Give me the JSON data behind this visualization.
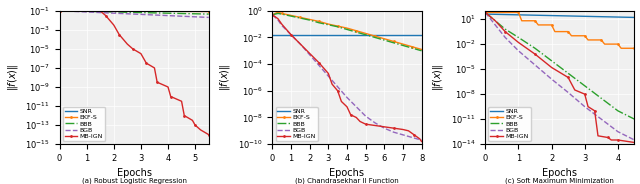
{
  "panels": [
    {
      "xlabel": "Epochs",
      "xlim": [
        0,
        5.5
      ],
      "xticks": [
        0,
        1,
        2,
        3,
        4,
        5
      ],
      "ylim_log": [
        -15,
        -1
      ],
      "caption": "(a) Robust Logistic Regression"
    },
    {
      "xlabel": "Epochs",
      "xlim": [
        0,
        8
      ],
      "xticks": [
        0,
        1,
        2,
        3,
        4,
        5,
        6,
        7,
        8
      ],
      "ylim_log": [
        -10,
        0
      ],
      "caption": "(b) Chandrasekhar II Function"
    },
    {
      "xlabel": "Epochs",
      "xlim": [
        0,
        4.5
      ],
      "xticks": [
        0,
        1,
        2,
        3,
        4
      ],
      "ylim_log": [
        -14,
        2
      ],
      "caption": "(c) Soft Maximum Minimization"
    }
  ],
  "line_styles": {
    "SNR": {
      "color": "#1f77b4",
      "ls": "-",
      "lw": 1.0,
      "marker": null,
      "ms": 2
    },
    "EKF-S": {
      "color": "#ff7f0e",
      "ls": "-",
      "lw": 1.0,
      "marker": ".",
      "ms": 2
    },
    "BBB": {
      "color": "#2ca02c",
      "ls": "-.",
      "lw": 1.0,
      "marker": null,
      "ms": 2
    },
    "BGB": {
      "color": "#9467bd",
      "ls": "--",
      "lw": 1.0,
      "marker": null,
      "ms": 2
    },
    "MB-IGN": {
      "color": "#d62728",
      "ls": "-",
      "lw": 1.0,
      "marker": ".",
      "ms": 2
    }
  },
  "p1": {
    "SNR": {
      "x": [
        0,
        5.5
      ],
      "y": [
        -1.0,
        -1.05
      ]
    },
    "EKF-S": {
      "x": [
        0,
        5.5
      ],
      "y": [
        -1.0,
        -1.08
      ]
    },
    "BBB": {
      "x": [
        0,
        5.5
      ],
      "y": [
        -1.0,
        -1.35
      ]
    },
    "BGB": {
      "x": [
        0,
        5.5
      ],
      "y": [
        -1.0,
        -1.7
      ]
    },
    "MB-IGN": {
      "x": [
        0,
        1.5,
        1.7,
        2.0,
        2.2,
        2.5,
        2.7,
        3.0,
        3.2,
        3.5,
        3.6,
        4.0,
        4.1,
        4.5,
        4.6,
        4.9,
        5.0,
        5.2,
        5.5
      ],
      "y": [
        -1.0,
        -1.02,
        -1.5,
        -2.5,
        -3.5,
        -4.5,
        -5.0,
        -5.5,
        -6.5,
        -7.0,
        -8.5,
        -9.0,
        -10.0,
        -10.5,
        -12.0,
        -12.5,
        -13.0,
        -13.5,
        -14.0
      ]
    }
  },
  "p2": {
    "SNR": {
      "x": [
        0,
        8
      ],
      "y": [
        -1.8,
        -1.8
      ]
    },
    "EKF-S": {
      "x": [
        0,
        0.3,
        0.5,
        1,
        1.5,
        2,
        2.5,
        3,
        3.5,
        4,
        4.5,
        5,
        5.5,
        6,
        6.5,
        7,
        7.5,
        8
      ],
      "y": [
        -0.3,
        -0.1,
        -0.2,
        -0.35,
        -0.5,
        -0.65,
        -0.8,
        -1.0,
        -1.15,
        -1.3,
        -1.5,
        -1.7,
        -1.9,
        -2.1,
        -2.3,
        -2.5,
        -2.7,
        -2.9
      ]
    },
    "BBB": {
      "x": [
        0,
        0.3,
        0.5,
        1,
        1.5,
        2,
        2.5,
        3,
        3.5,
        4,
        4.5,
        5,
        5.5,
        6,
        6.5,
        7,
        7.5,
        8
      ],
      "y": [
        -0.3,
        -0.2,
        -0.25,
        -0.4,
        -0.55,
        -0.7,
        -0.9,
        -1.05,
        -1.2,
        -1.4,
        -1.6,
        -1.8,
        -2.0,
        -2.2,
        -2.4,
        -2.6,
        -2.8,
        -3.0
      ]
    },
    "BGB": {
      "x": [
        0,
        0.3,
        0.5,
        1,
        1.5,
        2,
        2.5,
        3,
        3.5,
        4,
        4.5,
        5,
        5.5,
        6,
        6.5,
        7,
        7.5,
        8
      ],
      "y": [
        -0.3,
        -0.7,
        -1.1,
        -1.8,
        -2.5,
        -3.3,
        -4.1,
        -4.9,
        -5.7,
        -6.5,
        -7.2,
        -7.9,
        -8.4,
        -8.8,
        -9.1,
        -9.3,
        -9.5,
        -9.7
      ]
    },
    "MB-IGN": {
      "x": [
        0,
        0.3,
        0.5,
        1,
        1.5,
        2,
        2.5,
        3,
        3.2,
        3.5,
        3.7,
        4,
        4.2,
        4.5,
        4.7,
        5,
        5.5,
        6,
        6.5,
        7,
        7.3,
        7.6,
        7.9,
        8
      ],
      "y": [
        -0.3,
        -0.6,
        -1.0,
        -1.8,
        -2.5,
        -3.2,
        -3.9,
        -4.7,
        -5.5,
        -6.0,
        -6.8,
        -7.2,
        -7.8,
        -8.0,
        -8.3,
        -8.5,
        -8.6,
        -8.7,
        -8.8,
        -8.9,
        -9.0,
        -9.3,
        -9.6,
        -9.8
      ]
    }
  },
  "p3": {
    "SNR": {
      "x": [
        0,
        4.5
      ],
      "y": [
        1.6,
        1.2
      ]
    },
    "EKF-S": {
      "x": [
        0,
        0.5,
        1.0,
        1.1,
        1.5,
        1.6,
        2.0,
        2.1,
        2.5,
        2.6,
        3.0,
        3.1,
        3.5,
        3.6,
        4.0,
        4.1,
        4.5
      ],
      "y": [
        1.8,
        1.8,
        1.8,
        0.8,
        0.8,
        0.3,
        0.3,
        -0.5,
        -0.5,
        -1.0,
        -1.0,
        -1.5,
        -1.5,
        -2.0,
        -2.0,
        -2.5,
        -2.5
      ]
    },
    "BBB": {
      "x": [
        0,
        0.3,
        0.6,
        1.0,
        1.5,
        2.0,
        2.5,
        3.0,
        3.5,
        4.0,
        4.5
      ],
      "y": [
        1.8,
        0.8,
        -0.2,
        -1.2,
        -2.5,
        -4.0,
        -5.5,
        -7.0,
        -8.5,
        -10.0,
        -11.0
      ]
    },
    "BGB": {
      "x": [
        0,
        0.3,
        0.6,
        1.0,
        1.5,
        2.0,
        2.5,
        3.0,
        3.5,
        4.0,
        4.5
      ],
      "y": [
        1.8,
        0.3,
        -1.2,
        -2.8,
        -4.5,
        -6.2,
        -7.8,
        -9.5,
        -11.0,
        -12.5,
        -13.5
      ]
    },
    "MB-IGN": {
      "x": [
        0,
        0.3,
        0.6,
        1.0,
        1.5,
        2.0,
        2.5,
        2.7,
        3.0,
        3.1,
        3.3,
        3.4,
        3.7,
        3.8,
        4.0,
        4.5
      ],
      "y": [
        1.8,
        0.8,
        -0.5,
        -1.8,
        -3.2,
        -4.8,
        -6.0,
        -7.5,
        -8.0,
        -9.5,
        -10.0,
        -13.0,
        -13.2,
        -13.5,
        -13.5,
        -13.8
      ]
    }
  },
  "legend_order": [
    "SNR",
    "EKF-S",
    "BBB",
    "BGB",
    "MB-IGN"
  ],
  "bg_color": "#f0f0f0"
}
